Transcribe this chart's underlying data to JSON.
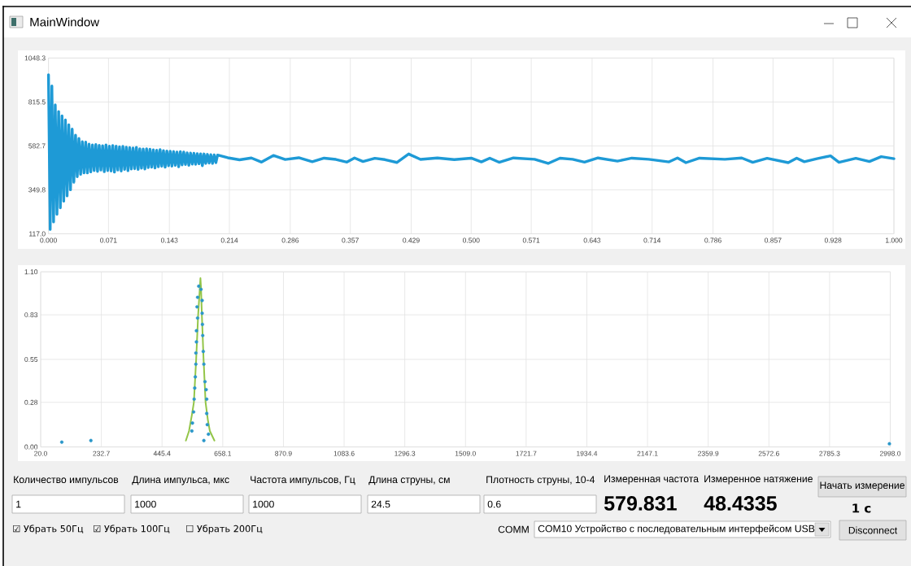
{
  "chart_data": [
    {
      "type": "line",
      "title": "MainWindow",
      "color": "#1e9ad6",
      "xlim": [
        0,
        1
      ],
      "ylim": [
        117.0,
        1048.3
      ],
      "xticks": [
        {
          "value": 0,
          "label": "0.000"
        },
        0.071,
        0.143,
        0.214,
        0.286,
        0.357,
        0.429,
        {
          "value": 0.5,
          "label": "0.500"
        },
        0.571,
        0.643,
        0.714,
        0.786,
        0.857,
        0.928,
        {
          "value": 1,
          "label": "1.000"
        }
      ],
      "yticks": [
        {
          "value": 117.0,
          "label": "117.0"
        },
        349.8,
        582.7,
        815.5,
        1048.3
      ],
      "grid": true,
      "x": [
        0,
        0.002,
        0.004,
        0.006,
        0.008,
        0.01,
        0.012,
        0.014,
        0.016,
        0.018,
        0.02,
        0.022,
        0.024,
        0.026,
        0.028,
        0.03,
        0.032,
        0.034,
        0.036,
        0.038,
        0.04,
        0.042,
        0.044,
        0.046,
        0.048,
        0.05,
        0.052,
        0.054,
        0.056,
        0.058,
        0.06,
        0.062,
        0.064,
        0.066,
        0.068,
        0.07,
        0.072,
        0.074,
        0.076,
        0.078,
        0.08,
        0.082,
        0.084,
        0.086,
        0.088,
        0.09,
        0.092,
        0.094,
        0.096,
        0.098,
        0.1,
        0.102,
        0.104,
        0.106,
        0.108,
        0.11,
        0.112,
        0.114,
        0.116,
        0.118,
        0.12,
        0.122,
        0.124,
        0.126,
        0.128,
        0.13,
        0.132,
        0.134,
        0.136,
        0.138,
        0.14,
        0.142,
        0.144,
        0.146,
        0.148,
        0.15,
        0.152,
        0.154,
        0.156,
        0.158,
        0.16,
        0.162,
        0.164,
        0.166,
        0.168,
        0.17,
        0.172,
        0.174,
        0.176,
        0.178,
        0.18,
        0.182,
        0.184,
        0.186,
        0.188,
        0.19,
        0.192,
        0.194,
        0.196,
        0.198,
        0.2,
        0.212,
        0.226,
        0.24,
        0.252,
        0.266,
        0.28,
        0.296,
        0.312,
        0.326,
        0.34,
        0.353,
        0.362,
        0.372,
        0.386,
        0.398,
        0.412,
        0.426,
        0.44,
        0.46,
        0.48,
        0.5,
        0.512,
        0.522,
        0.533,
        0.55,
        0.575,
        0.591,
        0.605,
        0.62,
        0.634,
        0.65,
        0.673,
        0.69,
        0.71,
        0.734,
        0.744,
        0.754,
        0.77,
        0.8,
        0.82,
        0.833,
        0.85,
        0.875,
        0.885,
        0.894,
        0.91,
        0.925,
        0.935,
        0.955,
        0.971,
        0.985,
        1.0
      ],
      "values": [
        960,
        140,
        900,
        180,
        800,
        220,
        765,
        255,
        742,
        290,
        720,
        318,
        695,
        350,
        672,
        390,
        640,
        420,
        622,
        432,
        605,
        440,
        603,
        440,
        592,
        445,
        588,
        452,
        590,
        448,
        586,
        455,
        584,
        446,
        588,
        452,
        582,
        450,
        585,
        444,
        582,
        455,
        578,
        450,
        580,
        458,
        576,
        452,
        574,
        460,
        572,
        462,
        575,
        458,
        568,
        465,
        566,
        460,
        568,
        468,
        565,
        470,
        562,
        466,
        560,
        472,
        563,
        475,
        558,
        470,
        556,
        478,
        555,
        476,
        553,
        480,
        550,
        472,
        552,
        482,
        550,
        484,
        546,
        480,
        545,
        486,
        544,
        485,
        542,
        488,
        541,
        478,
        540,
        490,
        538,
        492,
        536,
        490,
        535,
        494,
        534,
        520,
        509,
        519,
        497,
        532,
        511,
        520,
        499,
        518,
        511,
        497,
        519,
        500,
        517,
        510,
        495,
        540,
        511,
        519,
        510,
        518,
        498,
        518,
        496,
        519,
        512,
        490,
        518,
        512,
        497,
        519,
        502,
        518,
        512,
        498,
        519,
        494,
        518,
        512,
        519,
        496,
        517,
        494,
        518,
        499,
        516,
        530,
        496,
        517,
        500,
        526,
        515
      ]
    },
    {
      "type": "scatter",
      "xlim": [
        20.0,
        2998.0
      ],
      "ylim": [
        0,
        1.1
      ],
      "xticks": [
        {
          "value": 20.0,
          "label": "20.0"
        },
        232.7,
        445.4,
        658.1,
        870.9,
        1083.6,
        1296.3,
        {
          "value": 1509.0,
          "label": "1509.0"
        },
        1721.7,
        1934.4,
        2147.1,
        2359.9,
        2572.6,
        2785.3,
        {
          "value": 2998.0,
          "label": "2998.0"
        }
      ],
      "yticks": [
        {
          "value": 0,
          "label": "0.00"
        },
        0.28,
        0.55,
        0.83,
        {
          "value": 1.1,
          "label": "1.10"
        }
      ],
      "grid": true,
      "series": [
        {
          "type": "line",
          "color": "#93c548",
          "x": [
            529,
            540,
            550,
            557,
            565,
            572,
            578,
            580,
            582,
            585,
            591,
            598,
            606,
            613,
            629
          ],
          "values": [
            0.04,
            0.1,
            0.2,
            0.28,
            0.55,
            0.83,
            1.0,
            1.06,
            1.0,
            0.83,
            0.55,
            0.28,
            0.17,
            0.1,
            0.04
          ]
        },
        {
          "type": "scatter",
          "marker": "circle",
          "color": "#2b97c9",
          "x": [
            94,
            196,
            550,
            552,
            556,
            558,
            560,
            562,
            564,
            564,
            566,
            566,
            570,
            568,
            570,
            574,
            582,
            586,
            586,
            587,
            588,
            590,
            592,
            596,
            600,
            602,
            602,
            604,
            608,
            592,
            2995
          ],
          "values": [
            0.03,
            0.04,
            0.1,
            0.15,
            0.22,
            0.3,
            0.37,
            0.44,
            0.52,
            0.59,
            0.66,
            0.73,
            0.81,
            0.88,
            0.94,
            1.01,
            0.99,
            0.92,
            0.84,
            0.77,
            0.7,
            0.6,
            0.52,
            0.41,
            0.36,
            0.3,
            0.21,
            0.14,
            0.08,
            0.04,
            0.02
          ]
        }
      ]
    },
    {
      "type": "other",
      "annotations": [
        "Количество импульсов",
        "Длина импульса, мкс",
        "Частота импульсов, Гц",
        "Длина струны, см",
        "Плотность струны, 10-4",
        "Измеренная частота",
        "Измеренное натяжение",
        "Начать измерение",
        "1",
        "1000",
        "1000",
        "24.5",
        "0.6",
        "579.831",
        "48.4335",
        "1 с",
        "☑ Убрать 50Гц",
        "☑ Убрать 100Гц",
        "☐ Убрать 200Гц",
        "COMM",
        "COM10 Устройство с последовательным интерфейсом USB",
        "Disconnect"
      ]
    }
  ]
}
